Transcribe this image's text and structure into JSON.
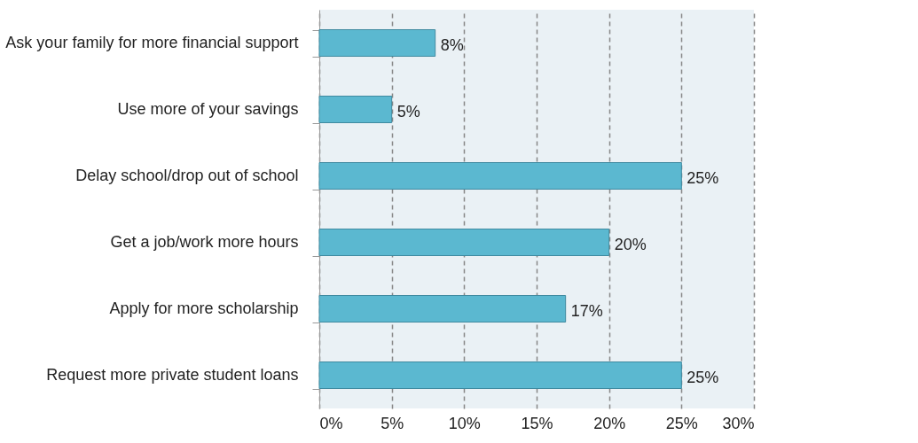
{
  "chart_data": {
    "type": "bar",
    "orientation": "horizontal",
    "categories": [
      "Ask your family for more financial support",
      "Use more of your savings",
      "Delay school/drop out of school",
      "Get a job/work more hours",
      "Apply for more scholarship",
      "Request more private student loans"
    ],
    "values": [
      8,
      5,
      25,
      20,
      17,
      25
    ],
    "value_labels": [
      "8%",
      "5%",
      "25%",
      "20%",
      "17%",
      "25%"
    ],
    "color": "#5bb8d0",
    "xlim": [
      0,
      30
    ],
    "xticks": [
      {
        "value": 0,
        "label": "0%"
      },
      {
        "value": 5,
        "label": "5%"
      },
      {
        "value": 10,
        "label": "10%"
      },
      {
        "value": 15,
        "label": "15%"
      },
      {
        "value": 20,
        "label": "20%"
      },
      {
        "value": 25,
        "label": "25%"
      },
      {
        "value": 30,
        "label": "30%"
      }
    ],
    "grid": "x"
  }
}
